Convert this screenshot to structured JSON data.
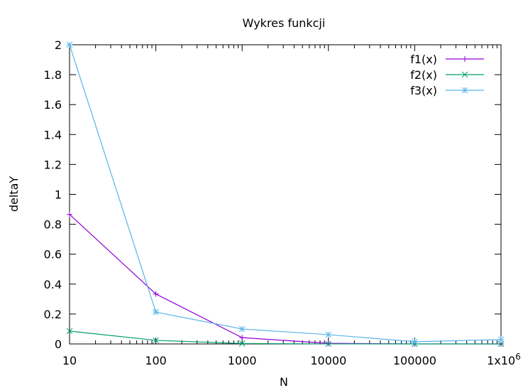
{
  "chart_data": {
    "type": "line",
    "title": "Wykres funkcji",
    "xlabel": "N",
    "ylabel": "deltaY",
    "x_scale": "log",
    "xlim": [
      10,
      1000000
    ],
    "ylim": [
      0,
      2
    ],
    "x_ticks": [
      {
        "value": 10,
        "label": "10"
      },
      {
        "value": 100,
        "label": "100"
      },
      {
        "value": 1000,
        "label": "1000"
      },
      {
        "value": 10000,
        "label": "10000"
      },
      {
        "value": 100000,
        "label": "100000"
      },
      {
        "value": 1000000,
        "label": "1x10",
        "sup": "6"
      }
    ],
    "y_ticks": [
      {
        "value": 0,
        "label": "0"
      },
      {
        "value": 0.2,
        "label": "0.2"
      },
      {
        "value": 0.4,
        "label": "0.4"
      },
      {
        "value": 0.6,
        "label": "0.6"
      },
      {
        "value": 0.8,
        "label": "0.8"
      },
      {
        "value": 1,
        "label": "1"
      },
      {
        "value": 1.2,
        "label": "1.2"
      },
      {
        "value": 1.4,
        "label": "1.4"
      },
      {
        "value": 1.6,
        "label": "1.6"
      },
      {
        "value": 1.8,
        "label": "1.8"
      },
      {
        "value": 2,
        "label": "2"
      }
    ],
    "grid": false,
    "legend_position": "top-right",
    "x": [
      10,
      100,
      1000,
      10000,
      100000,
      1000000
    ],
    "series": [
      {
        "name": "f1(x)",
        "color": "#9400d3",
        "marker": "plus",
        "values": [
          0.866,
          0.334,
          0.042,
          0.004,
          0.0004,
          4e-05
        ]
      },
      {
        "name": "f2(x)",
        "color": "#009e73",
        "marker": "cross",
        "values": [
          0.086,
          0.024,
          0.003,
          0.0003,
          3e-05,
          3e-06
        ]
      },
      {
        "name": "f3(x)",
        "color": "#56b4e9",
        "marker": "star",
        "values": [
          2.0,
          0.213,
          0.1,
          0.062,
          0.015,
          0.029
        ]
      }
    ]
  }
}
